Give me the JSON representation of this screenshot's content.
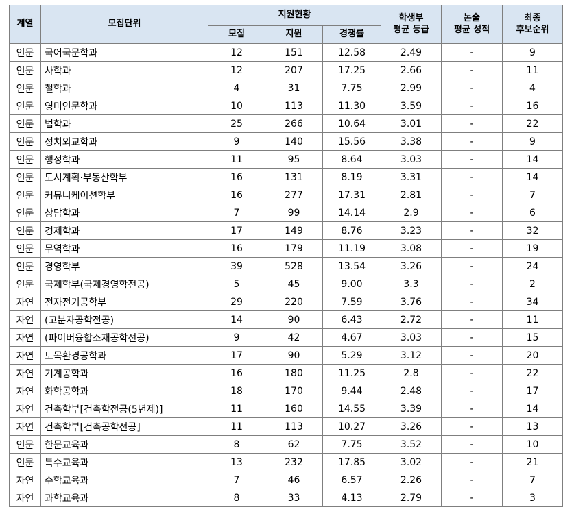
{
  "headers": {
    "field": "계열",
    "unit": "모집단위",
    "status": "지원현황",
    "quota": "모집",
    "applied": "지원",
    "ratio": "경쟁률",
    "gpa_line1": "학생부",
    "gpa_line2": "평균 등급",
    "essay_line1": "논술",
    "essay_line2": "평균 성적",
    "final_line1": "최종",
    "final_line2": "후보순위"
  },
  "rows": [
    {
      "field": "인문",
      "unit": "국어국문학과",
      "quota": "12",
      "applied": "151",
      "ratio": "12.58",
      "gpa": "2.49",
      "essay": "-",
      "rank": "9"
    },
    {
      "field": "인문",
      "unit": "사학과",
      "quota": "12",
      "applied": "207",
      "ratio": "17.25",
      "gpa": "2.66",
      "essay": "-",
      "rank": "11"
    },
    {
      "field": "인문",
      "unit": "철학과",
      "quota": "4",
      "applied": "31",
      "ratio": "7.75",
      "gpa": "2.99",
      "essay": "-",
      "rank": "4"
    },
    {
      "field": "인문",
      "unit": "영미인문학과",
      "quota": "10",
      "applied": "113",
      "ratio": "11.30",
      "gpa": "3.59",
      "essay": "-",
      "rank": "16"
    },
    {
      "field": "인문",
      "unit": "법학과",
      "quota": "25",
      "applied": "266",
      "ratio": "10.64",
      "gpa": "3.01",
      "essay": "-",
      "rank": "22"
    },
    {
      "field": "인문",
      "unit": "정치외교학과",
      "quota": "9",
      "applied": "140",
      "ratio": "15.56",
      "gpa": "3.38",
      "essay": "-",
      "rank": "9"
    },
    {
      "field": "인문",
      "unit": "행정학과",
      "quota": "11",
      "applied": "95",
      "ratio": "8.64",
      "gpa": "3.03",
      "essay": "-",
      "rank": "14"
    },
    {
      "field": "인문",
      "unit": "도시계획·부동산학부",
      "quota": "16",
      "applied": "131",
      "ratio": "8.19",
      "gpa": "3.31",
      "essay": "-",
      "rank": "14"
    },
    {
      "field": "인문",
      "unit": "커뮤니케이션학부",
      "quota": "16",
      "applied": "277",
      "ratio": "17.31",
      "gpa": "2.81",
      "essay": "-",
      "rank": "7"
    },
    {
      "field": "인문",
      "unit": "상담학과",
      "quota": "7",
      "applied": "99",
      "ratio": "14.14",
      "gpa": "2.9",
      "essay": "-",
      "rank": "6"
    },
    {
      "field": "인문",
      "unit": "경제학과",
      "quota": "17",
      "applied": "149",
      "ratio": "8.76",
      "gpa": "3.23",
      "essay": "-",
      "rank": "32"
    },
    {
      "field": "인문",
      "unit": "무역학과",
      "quota": "16",
      "applied": "179",
      "ratio": "11.19",
      "gpa": "3.08",
      "essay": "-",
      "rank": "19"
    },
    {
      "field": "인문",
      "unit": "경영학부",
      "quota": "39",
      "applied": "528",
      "ratio": "13.54",
      "gpa": "3.26",
      "essay": "-",
      "rank": "24"
    },
    {
      "field": "인문",
      "unit": "국제학부(국제경영학전공)",
      "quota": "5",
      "applied": "45",
      "ratio": "9.00",
      "gpa": "3.3",
      "essay": "-",
      "rank": "2"
    },
    {
      "field": "자연",
      "unit": "전자전기공학부",
      "quota": "29",
      "applied": "220",
      "ratio": "7.59",
      "gpa": "3.76",
      "essay": "-",
      "rank": "34"
    },
    {
      "field": "자연",
      "unit": "(고분자공학전공)",
      "quota": "14",
      "applied": "90",
      "ratio": "6.43",
      "gpa": "2.72",
      "essay": "-",
      "rank": "11"
    },
    {
      "field": "자연",
      "unit": "(파이버융합소재공학전공)",
      "quota": "9",
      "applied": "42",
      "ratio": "4.67",
      "gpa": "3.03",
      "essay": "-",
      "rank": "15"
    },
    {
      "field": "자연",
      "unit": "토목환경공학과",
      "quota": "17",
      "applied": "90",
      "ratio": "5.29",
      "gpa": "3.12",
      "essay": "-",
      "rank": "20"
    },
    {
      "field": "자연",
      "unit": "기계공학과",
      "quota": "16",
      "applied": "180",
      "ratio": "11.25",
      "gpa": "2.8",
      "essay": "-",
      "rank": "22"
    },
    {
      "field": "자연",
      "unit": "화학공학과",
      "quota": "18",
      "applied": "170",
      "ratio": "9.44",
      "gpa": "2.48",
      "essay": "-",
      "rank": "17"
    },
    {
      "field": "자연",
      "unit": "건축학부[건축학전공(5년제)]",
      "quota": "11",
      "applied": "160",
      "ratio": "14.55",
      "gpa": "3.39",
      "essay": "-",
      "rank": "14"
    },
    {
      "field": "자연",
      "unit": "건축학부[건축공학전공]",
      "quota": "11",
      "applied": "113",
      "ratio": "10.27",
      "gpa": "3.26",
      "essay": "-",
      "rank": "13"
    },
    {
      "field": "인문",
      "unit": "한문교육과",
      "quota": "8",
      "applied": "62",
      "ratio": "7.75",
      "gpa": "3.52",
      "essay": "-",
      "rank": "10"
    },
    {
      "field": "인문",
      "unit": "특수교육과",
      "quota": "13",
      "applied": "232",
      "ratio": "17.85",
      "gpa": "3.02",
      "essay": "-",
      "rank": "21"
    },
    {
      "field": "자연",
      "unit": "수학교육과",
      "quota": "7",
      "applied": "46",
      "ratio": "6.57",
      "gpa": "2.26",
      "essay": "-",
      "rank": "7"
    },
    {
      "field": "자연",
      "unit": "과학교육과",
      "quota": "8",
      "applied": "33",
      "ratio": "4.13",
      "gpa": "2.79",
      "essay": "-",
      "rank": "3"
    }
  ]
}
